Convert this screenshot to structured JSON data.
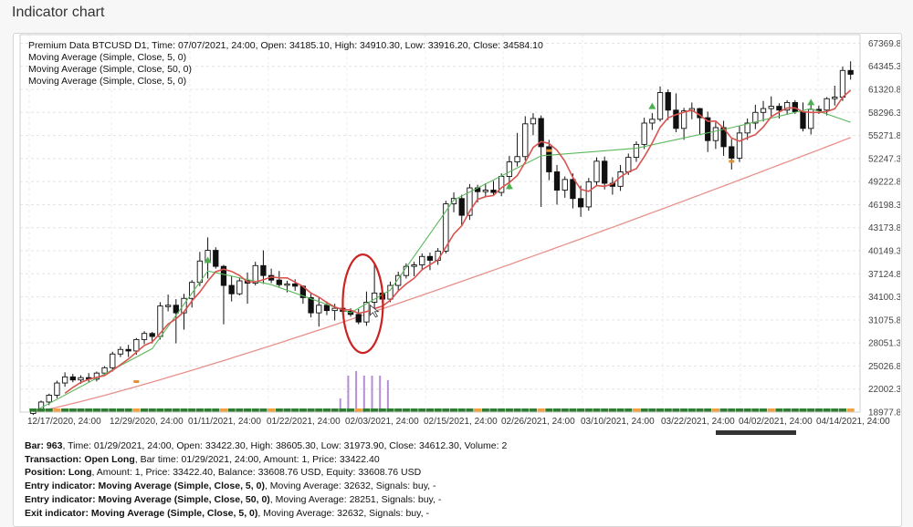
{
  "page": {
    "title": "Indicator chart"
  },
  "legend": {
    "header": "Premium Data BTCUSD D1, Time: 07/07/2021, 24:00, Open: 34185.10, High: 34910.30, Low: 33916.20, Close: 34584.10",
    "lines": [
      "Moving Average (Simple, Close, 5, 0)",
      "Moving Average (Simple, Close, 50, 0)",
      "Moving Average (Simple, Close, 5, 0)"
    ]
  },
  "colors": {
    "ma_fast": "#d9534f",
    "ma_slow": "#e8908b",
    "ma_green": "#5cb85c",
    "highlight": "#cc2222",
    "volume": "#b48fd6",
    "signal_green": "#2e7d32",
    "signal_orange": "#f0a040",
    "bull_marker": "#4caf50",
    "bear_marker": "#e09030"
  },
  "chart_data": {
    "type": "candlestick",
    "symbol": "BTCUSD",
    "timeframe": "D1",
    "ylim": [
      18977.8,
      68500
    ],
    "y_ticks": [
      "67369.80",
      "64345.30",
      "61320.80",
      "58296.30",
      "55271.80",
      "52247.30",
      "49222.80",
      "46198.30",
      "43173.80",
      "40149.30",
      "37124.80",
      "34100.30",
      "31075.80",
      "28051.30",
      "25026.80",
      "22002.30",
      "18977.80"
    ],
    "x_ticks": [
      "12/17/2020, 24:00",
      "12/29/2020, 24:00",
      "01/11/2021, 24:00",
      "01/22/2021, 24:00",
      "02/03/2021, 24:00",
      "02/15/2021, 24:00",
      "02/26/2021, 24:00",
      "03/10/2021, 24:00",
      "03/22/2021, 24:00",
      "04/02/2021, 24:00",
      "04/14/2021, 24:00"
    ],
    "candles": [
      [
        18800,
        19400,
        18600,
        19300
      ],
      [
        19300,
        20500,
        19100,
        20300
      ],
      [
        20300,
        21400,
        19900,
        21200
      ],
      [
        21200,
        23100,
        20800,
        22800
      ],
      [
        22800,
        24200,
        22300,
        23600
      ],
      [
        23600,
        24000,
        22900,
        23200
      ],
      [
        23200,
        23800,
        22700,
        23500
      ],
      [
        23500,
        24100,
        22900,
        23300
      ],
      [
        23300,
        24300,
        23000,
        24100
      ],
      [
        24100,
        25000,
        23900,
        24800
      ],
      [
        24800,
        26900,
        24300,
        26600
      ],
      [
        26600,
        27600,
        26200,
        27200
      ],
      [
        27200,
        27800,
        26200,
        27000
      ],
      [
        27000,
        28700,
        26500,
        28500
      ],
      [
        28500,
        29600,
        27900,
        29300
      ],
      [
        29300,
        29500,
        28000,
        28900
      ],
      [
        28900,
        33400,
        28500,
        32900
      ],
      [
        32900,
        34400,
        32200,
        33000
      ],
      [
        33000,
        33800,
        28000,
        32000
      ],
      [
        32000,
        34500,
        29800,
        33900
      ],
      [
        33900,
        36300,
        32700,
        36000
      ],
      [
        36000,
        40000,
        35500,
        38800
      ],
      [
        38800,
        41900,
        36500,
        40200
      ],
      [
        40200,
        40600,
        37800,
        38100
      ],
      [
        38100,
        38300,
        30500,
        35600
      ],
      [
        35600,
        36800,
        33500,
        34500
      ],
      [
        34500,
        36600,
        34300,
        36200
      ],
      [
        36200,
        37300,
        33200,
        35900
      ],
      [
        35900,
        38700,
        35600,
        38200
      ],
      [
        38200,
        40200,
        35800,
        36900
      ],
      [
        36900,
        37800,
        35900,
        36300
      ],
      [
        36300,
        37500,
        35400,
        35700
      ],
      [
        35700,
        36200,
        34700,
        35800
      ],
      [
        35800,
        36400,
        34900,
        35500
      ],
      [
        35500,
        35600,
        33200,
        34000
      ],
      [
        34000,
        34500,
        31400,
        32000
      ],
      [
        32000,
        34000,
        30200,
        33000
      ],
      [
        33000,
        33500,
        31700,
        32300
      ],
      [
        32300,
        33200,
        31000,
        32600
      ],
      [
        32600,
        33100,
        31800,
        32200
      ],
      [
        32200,
        32600,
        31500,
        31800
      ],
      [
        31800,
        32500,
        30500,
        30800
      ],
      [
        30800,
        34800,
        30300,
        33400
      ],
      [
        33400,
        38600,
        31900,
        34600
      ],
      [
        34600,
        35500,
        33200,
        33800
      ],
      [
        33800,
        36100,
        33400,
        35600
      ],
      [
        35600,
        37400,
        34800,
        36900
      ],
      [
        36900,
        38500,
        36500,
        38100
      ],
      [
        38100,
        38700,
        36800,
        38300
      ],
      [
        38300,
        39800,
        37700,
        39400
      ],
      [
        39400,
        39900,
        37600,
        38900
      ],
      [
        38900,
        40500,
        38300,
        40100
      ],
      [
        40100,
        46700,
        39800,
        46300
      ],
      [
        46300,
        47800,
        45200,
        47000
      ],
      [
        47000,
        47500,
        43400,
        44800
      ],
      [
        44800,
        48900,
        44200,
        48400
      ],
      [
        48400,
        48800,
        46500,
        47900
      ],
      [
        47900,
        49000,
        47200,
        48100
      ],
      [
        48100,
        49300,
        47400,
        47800
      ],
      [
        47800,
        50300,
        47300,
        49900
      ],
      [
        49900,
        52600,
        48200,
        51800
      ],
      [
        51800,
        55600,
        51200,
        52500
      ],
      [
        52500,
        57800,
        52000,
        56800
      ],
      [
        56800,
        58200,
        55300,
        57500
      ],
      [
        57500,
        57900,
        45900,
        53800
      ],
      [
        53800,
        54700,
        49400,
        50500
      ],
      [
        50500,
        51400,
        46200,
        48100
      ],
      [
        48100,
        49900,
        47100,
        49500
      ],
      [
        49500,
        50300,
        45700,
        47000
      ],
      [
        47000,
        48700,
        44600,
        45900
      ],
      [
        45900,
        49700,
        45400,
        49200
      ],
      [
        49200,
        52400,
        48600,
        51900
      ],
      [
        51900,
        52500,
        48200,
        49000
      ],
      [
        49000,
        49800,
        47500,
        48600
      ],
      [
        48600,
        51400,
        48000,
        50500
      ],
      [
        50500,
        52900,
        50100,
        52400
      ],
      [
        52400,
        54500,
        51800,
        54100
      ],
      [
        54100,
        57600,
        53500,
        56900
      ],
      [
        56900,
        58200,
        56000,
        57400
      ],
      [
        57400,
        61700,
        57100,
        60900
      ],
      [
        60900,
        61300,
        57300,
        58600
      ],
      [
        58600,
        60800,
        55700,
        56200
      ],
      [
        56200,
        58900,
        54700,
        58500
      ],
      [
        58500,
        59600,
        57400,
        58800
      ],
      [
        58800,
        58900,
        55400,
        57600
      ],
      [
        57600,
        58400,
        53100,
        54600
      ],
      [
        54600,
        57000,
        53500,
        56300
      ],
      [
        56300,
        57200,
        52600,
        53800
      ],
      [
        53800,
        54800,
        50800,
        52300
      ],
      [
        52300,
        56500,
        51800,
        55600
      ],
      [
        55600,
        57500,
        54700,
        56900
      ],
      [
        56900,
        59300,
        56100,
        58300
      ],
      [
        58300,
        59800,
        57100,
        58800
      ],
      [
        58800,
        60400,
        57700,
        59100
      ],
      [
        59100,
        59500,
        57500,
        58600
      ],
      [
        58600,
        59900,
        58000,
        59600
      ],
      [
        59600,
        59900,
        58100,
        58400
      ],
      [
        58400,
        59600,
        55800,
        56200
      ],
      [
        56200,
        59600,
        55400,
        58700
      ],
      [
        58700,
        59200,
        58100,
        58600
      ],
      [
        58600,
        60300,
        57900,
        60100
      ],
      [
        60100,
        61800,
        59200,
        60300
      ],
      [
        60300,
        64300,
        59800,
        63800
      ],
      [
        63800,
        65000,
        62600,
        63300
      ]
    ],
    "volume": {
      "start_index": 41,
      "values": [
        3,
        8,
        9,
        8,
        8,
        8,
        7
      ]
    },
    "signals": {
      "orange_indices": [
        3,
        13,
        24,
        30,
        41,
        56,
        64,
        76,
        86,
        93,
        103
      ]
    },
    "highlight_candle_index": 42,
    "series": [
      {
        "name": "Moving Average (Simple, Close, 5, 0)",
        "period": 5
      },
      {
        "name": "Moving Average (Simple, Close, 50, 0)",
        "period": 50
      }
    ],
    "bottom_axis_label_suffix": "24:00"
  },
  "info": {
    "bar": "Bar: 963",
    "bar_rest": ", Time: 01/29/2021, 24:00, Open: 33422.30, High: 38605.30, Low: 31973.90, Close: 34612.30, Volume: 2",
    "transaction": "Transaction: Open Long",
    "transaction_rest": ", Bar time: 01/29/2021, 24:00, Amount: 1, Price: 33422.40",
    "position": "Position: Long",
    "position_rest": ", Amount: 1, Price: 33422.40, Balance: 33608.76 USD, Equity: 33608.76 USD",
    "entry1": "Entry indicator: Moving Average (Simple, Close, 5, 0)",
    "entry1_rest": ", Moving Average: 32632, Signals: buy, -",
    "entry2": "Entry indicator: Moving Average (Simple, Close, 50, 0)",
    "entry2_rest": ", Moving Average: 28251, Signals: buy, -",
    "exit1": "Exit indicator: Moving Average (Simple, Close, 5, 0)",
    "exit1_rest": ", Moving Average: 32632, Signals: buy, -"
  }
}
